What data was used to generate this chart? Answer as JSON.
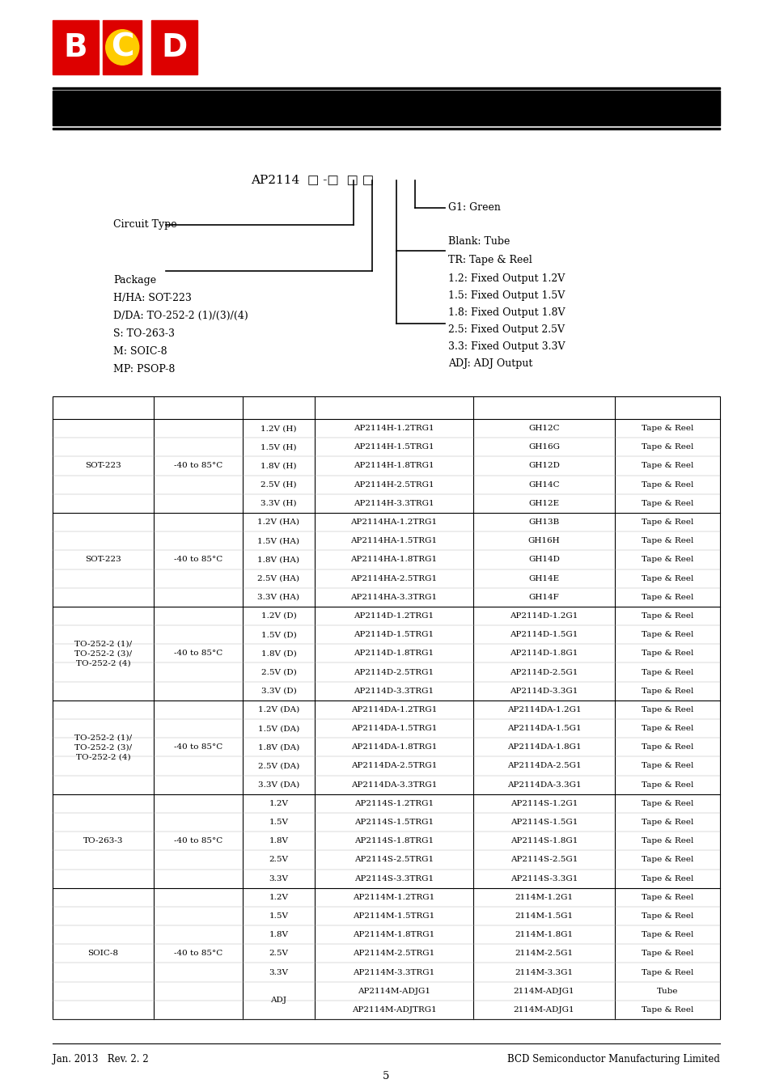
{
  "page_width": 9.54,
  "page_height": 13.5,
  "bg_color": "#ffffff",
  "table_rows": [
    [
      "SOT-223",
      "-40 to 85°C",
      "1.2V (H)",
      "AP2114H-1.2TRG1",
      "GH12C",
      "Tape & Reel"
    ],
    [
      "",
      "",
      "1.5V (H)",
      "AP2114H-1.5TRG1",
      "GH16G",
      "Tape & Reel"
    ],
    [
      "",
      "",
      "1.8V (H)",
      "AP2114H-1.8TRG1",
      "GH12D",
      "Tape & Reel"
    ],
    [
      "",
      "",
      "2.5V (H)",
      "AP2114H-2.5TRG1",
      "GH14C",
      "Tape & Reel"
    ],
    [
      "",
      "",
      "3.3V (H)",
      "AP2114H-3.3TRG1",
      "GH12E",
      "Tape & Reel"
    ],
    [
      "SOT-223",
      "-40 to 85°C",
      "1.2V (HA)",
      "AP2114HA-1.2TRG1",
      "GH13B",
      "Tape & Reel"
    ],
    [
      "",
      "",
      "1.5V (HA)",
      "AP2114HA-1.5TRG1",
      "GH16H",
      "Tape & Reel"
    ],
    [
      "",
      "",
      "1.8V (HA)",
      "AP2114HA-1.8TRG1",
      "GH14D",
      "Tape & Reel"
    ],
    [
      "",
      "",
      "2.5V (HA)",
      "AP2114HA-2.5TRG1",
      "GH14E",
      "Tape & Reel"
    ],
    [
      "",
      "",
      "3.3V (HA)",
      "AP2114HA-3.3TRG1",
      "GH14F",
      "Tape & Reel"
    ],
    [
      "TO-252-2 (1)/\nTO-252-2 (3)/\nTO-252-2 (4)",
      "-40 to 85°C",
      "1.2V (D)",
      "AP2114D-1.2TRG1",
      "AP2114D-1.2G1",
      "Tape & Reel"
    ],
    [
      "",
      "",
      "1.5V (D)",
      "AP2114D-1.5TRG1",
      "AP2114D-1.5G1",
      "Tape & Reel"
    ],
    [
      "",
      "",
      "1.8V (D)",
      "AP2114D-1.8TRG1",
      "AP2114D-1.8G1",
      "Tape & Reel"
    ],
    [
      "",
      "",
      "2.5V (D)",
      "AP2114D-2.5TRG1",
      "AP2114D-2.5G1",
      "Tape & Reel"
    ],
    [
      "",
      "",
      "3.3V (D)",
      "AP2114D-3.3TRG1",
      "AP2114D-3.3G1",
      "Tape & Reel"
    ],
    [
      "TO-252-2 (1)/\nTO-252-2 (3)/\nTO-252-2 (4)",
      "-40 to 85°C",
      "1.2V (DA)",
      "AP2114DA-1.2TRG1",
      "AP2114DA-1.2G1",
      "Tape & Reel"
    ],
    [
      "",
      "",
      "1.5V (DA)",
      "AP2114DA-1.5TRG1",
      "AP2114DA-1.5G1",
      "Tape & Reel"
    ],
    [
      "",
      "",
      "1.8V (DA)",
      "AP2114DA-1.8TRG1",
      "AP2114DA-1.8G1",
      "Tape & Reel"
    ],
    [
      "",
      "",
      "2.5V (DA)",
      "AP2114DA-2.5TRG1",
      "AP2114DA-2.5G1",
      "Tape & Reel"
    ],
    [
      "",
      "",
      "3.3V (DA)",
      "AP2114DA-3.3TRG1",
      "AP2114DA-3.3G1",
      "Tape & Reel"
    ],
    [
      "TO-263-3",
      "-40 to 85°C",
      "1.2V",
      "AP2114S-1.2TRG1",
      "AP2114S-1.2G1",
      "Tape & Reel"
    ],
    [
      "",
      "",
      "1.5V",
      "AP2114S-1.5TRG1",
      "AP2114S-1.5G1",
      "Tape & Reel"
    ],
    [
      "",
      "",
      "1.8V",
      "AP2114S-1.8TRG1",
      "AP2114S-1.8G1",
      "Tape & Reel"
    ],
    [
      "",
      "",
      "2.5V",
      "AP2114S-2.5TRG1",
      "AP2114S-2.5G1",
      "Tape & Reel"
    ],
    [
      "",
      "",
      "3.3V",
      "AP2114S-3.3TRG1",
      "AP2114S-3.3G1",
      "Tape & Reel"
    ],
    [
      "SOIC-8",
      "-40 to 85°C",
      "1.2V",
      "AP2114M-1.2TRG1",
      "2114M-1.2G1",
      "Tape & Reel"
    ],
    [
      "",
      "",
      "1.5V",
      "AP2114M-1.5TRG1",
      "2114M-1.5G1",
      "Tape & Reel"
    ],
    [
      "",
      "",
      "1.8V",
      "AP2114M-1.8TRG1",
      "2114M-1.8G1",
      "Tape & Reel"
    ],
    [
      "",
      "",
      "2.5V",
      "AP2114M-2.5TRG1",
      "2114M-2.5G1",
      "Tape & Reel"
    ],
    [
      "",
      "",
      "3.3V",
      "AP2114M-3.3TRG1",
      "2114M-3.3G1",
      "Tape & Reel"
    ],
    [
      "",
      "",
      "ADJ",
      "AP2114M-ADJG1",
      "2114M-ADJG1",
      "Tube"
    ],
    [
      "",
      "",
      "",
      "AP2114M-ADJTRG1",
      "2114M-ADJG1",
      "Tape & Reel"
    ]
  ],
  "groups": [
    [
      0,
      4,
      "SOT-223",
      "-40 to 85°C"
    ],
    [
      5,
      9,
      "SOT-223",
      "-40 to 85°C"
    ],
    [
      10,
      14,
      "TO-252-2 (1)/\nTO-252-2 (3)/\nTO-252-2 (4)",
      "-40 to 85°C"
    ],
    [
      15,
      19,
      "TO-252-2 (1)/\nTO-252-2 (3)/\nTO-252-2 (4)",
      "-40 to 85°C"
    ],
    [
      20,
      24,
      "TO-263-3",
      "-40 to 85°C"
    ],
    [
      25,
      31,
      "SOIC-8",
      "-40 to 85°C"
    ]
  ],
  "group_ends": [
    4,
    9,
    14,
    19,
    24
  ],
  "footer_left": "Jan. 2013   Rev. 2. 2",
  "footer_right": "BCD Semiconductor Manufacturing Limited",
  "footer_page": "5",
  "logo_color": "#dd0000",
  "logo_yellow": "#ffcc00"
}
